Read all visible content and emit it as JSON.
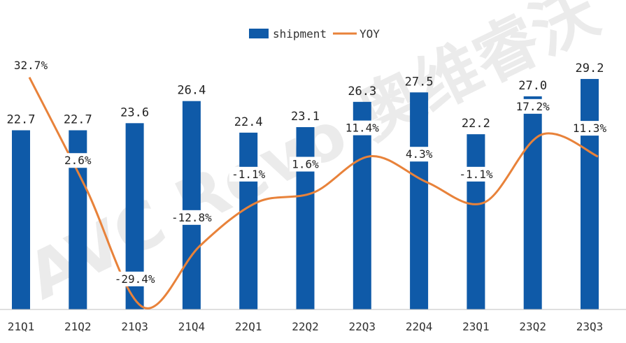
{
  "chart_data": {
    "type": "bar",
    "categories": [
      "21Q1",
      "21Q2",
      "21Q3",
      "21Q4",
      "22Q1",
      "22Q2",
      "22Q3",
      "22Q4",
      "23Q1",
      "23Q2",
      "23Q3"
    ],
    "series": [
      {
        "name": "shipment",
        "type": "bar",
        "values": [
          22.7,
          22.7,
          23.6,
          26.4,
          22.4,
          23.1,
          26.3,
          27.5,
          22.2,
          27.0,
          29.2
        ],
        "labels": [
          "22.7",
          "22.7",
          "23.6",
          "26.4",
          "22.4",
          "23.1",
          "26.3",
          "27.5",
          "22.2",
          "27.0",
          "29.2"
        ]
      },
      {
        "name": "YOY",
        "type": "line",
        "values": [
          32.7,
          2.6,
          -29.4,
          -12.8,
          -1.1,
          1.6,
          11.4,
          4.3,
          -1.1,
          17.2,
          11.3
        ],
        "labels": [
          "32.7%",
          "2.6%",
          "-29.4%",
          "-12.8%",
          "-1.1%",
          "1.6%",
          "11.4%",
          "4.3%",
          "-1.1%",
          "17.2%",
          "11.3%"
        ]
      }
    ],
    "legend": {
      "position": "top-center",
      "items": [
        "shipment",
        "YOY"
      ]
    },
    "colors": {
      "bar": "#0f5aa8",
      "line": "#e8823a",
      "axis": "#bfbfbf"
    },
    "watermark": "AVC Revo 奥维睿沃",
    "ylim": [
      0,
      30
    ],
    "ylim_secondary": [
      -45,
      45
    ]
  }
}
